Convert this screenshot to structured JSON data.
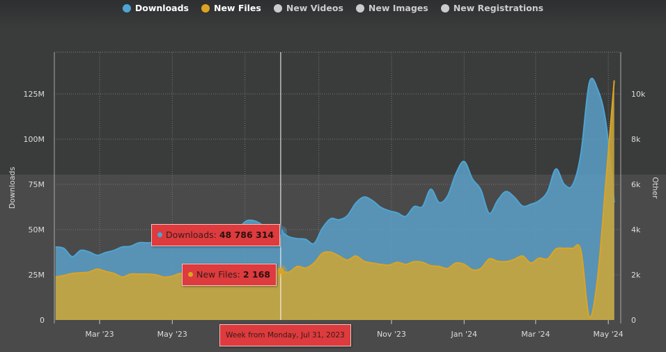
{
  "legend": [
    {
      "label": "Downloads",
      "color": "#4ea4d2",
      "active": true
    },
    {
      "label": "New Files",
      "color": "#dca424",
      "active": true
    },
    {
      "label": "New Videos",
      "color": "#cccccc",
      "active": false
    },
    {
      "label": "New Images",
      "color": "#cccccc",
      "active": false
    },
    {
      "label": "New Registrations",
      "color": "#cccccc",
      "active": false
    }
  ],
  "tooltip": {
    "downloads_label": "Downloads: ",
    "downloads_value": "48 786 314",
    "files_label": "New Files: ",
    "files_value": "2 168",
    "date": "Week from Monday, Jul 31, 2023"
  },
  "chart_data": {
    "type": "area",
    "x": [
      "2023-01-23",
      "2023-01-30",
      "2023-02-06",
      "2023-02-13",
      "2023-02-20",
      "2023-02-27",
      "2023-03-06",
      "2023-03-13",
      "2023-03-20",
      "2023-03-27",
      "2023-04-03",
      "2023-04-10",
      "2023-04-17",
      "2023-04-24",
      "2023-05-01",
      "2023-05-08",
      "2023-05-15",
      "2023-05-22",
      "2023-05-29",
      "2023-06-05",
      "2023-06-12",
      "2023-06-19",
      "2023-06-26",
      "2023-07-03",
      "2023-07-10",
      "2023-07-17",
      "2023-07-24",
      "2023-07-31",
      "2023-08-07",
      "2023-08-14",
      "2023-08-21",
      "2023-08-28",
      "2023-09-04",
      "2023-09-11",
      "2023-09-18",
      "2023-09-25",
      "2023-10-02",
      "2023-10-09",
      "2023-10-16",
      "2023-10-23",
      "2023-10-30",
      "2023-11-06",
      "2023-11-13",
      "2023-11-20",
      "2023-11-27",
      "2023-12-04",
      "2023-12-11",
      "2023-12-18",
      "2023-12-25",
      "2024-01-01",
      "2024-01-08",
      "2024-01-15",
      "2024-01-22",
      "2024-01-29",
      "2024-02-05",
      "2024-02-12",
      "2024-02-19",
      "2024-02-26",
      "2024-03-04",
      "2024-03-11",
      "2024-03-18",
      "2024-03-25",
      "2024-04-01",
      "2024-04-08",
      "2024-04-15",
      "2024-04-22",
      "2024-04-29",
      "2024-05-06"
    ],
    "series": [
      {
        "name": "Downloads",
        "axis": "left",
        "color": "#4ea4d2",
        "values": [
          40.4,
          39.6,
          35,
          38.5,
          37.7,
          35.8,
          37.3,
          38.5,
          40.4,
          40.8,
          42.7,
          42.7,
          43,
          44,
          45,
          45,
          47,
          48,
          47.7,
          46,
          47.3,
          50,
          51.5,
          55,
          54.6,
          52,
          48.8,
          48.786314,
          46,
          45,
          44.6,
          42.3,
          50.8,
          56,
          55.4,
          57.7,
          64.6,
          68,
          66,
          62.3,
          60.4,
          59.2,
          57.3,
          62.7,
          62.7,
          72.3,
          65,
          68.5,
          80.8,
          87.7,
          78,
          72,
          59,
          66,
          71,
          68,
          63,
          64,
          66,
          71,
          83.5,
          75,
          74.6,
          92,
          131,
          127.7,
          109,
          65
        ]
      },
      {
        "name": "New Files",
        "axis": "right",
        "color": "#dca424",
        "values": [
          1.9,
          1.97,
          2.06,
          2.09,
          2.12,
          2.25,
          2.15,
          2.06,
          1.9,
          2.03,
          2.03,
          2.03,
          2.0,
          1.9,
          1.94,
          2.06,
          1.94,
          1.9,
          1.9,
          1.88,
          2.0,
          2.0,
          1.9,
          1.97,
          2.18,
          2.28,
          2.22,
          2.168,
          2.12,
          2.37,
          2.3,
          2.52,
          2.95,
          3.0,
          2.83,
          2.65,
          2.83,
          2.6,
          2.52,
          2.46,
          2.43,
          2.55,
          2.46,
          2.58,
          2.55,
          2.4,
          2.37,
          2.28,
          2.52,
          2.46,
          2.22,
          2.28,
          2.7,
          2.6,
          2.58,
          2.68,
          2.83,
          2.52,
          2.74,
          2.7,
          3.14,
          3.17,
          3.17,
          3.08,
          0.15,
          1.85,
          6.15,
          10.6
        ]
      }
    ],
    "ylabel": "Downloads",
    "y2label": "Other",
    "ylim": [
      0,
      150
    ],
    "y2lim": [
      0,
      12
    ],
    "yticks": [
      "0",
      "25M",
      "50M",
      "75M",
      "100M",
      "125M"
    ],
    "y2ticks": [
      "0",
      "2k",
      "4k",
      "6k",
      "8k",
      "10k"
    ],
    "xticks": [
      {
        "date": "2023-03-01",
        "label": "Mar '23"
      },
      {
        "date": "2023-05-01",
        "label": "May '23"
      },
      {
        "date": "2023-07-01",
        "label": ""
      },
      {
        "date": "2023-09-01",
        "label": ""
      },
      {
        "date": "2023-11-01",
        "label": "Nov '23"
      },
      {
        "date": "2024-01-01",
        "label": "Jan '24"
      },
      {
        "date": "2024-03-01",
        "label": "Mar '24"
      },
      {
        "date": "2024-05-01",
        "label": "May '24"
      }
    ],
    "grid": true,
    "legend": "top-center"
  }
}
